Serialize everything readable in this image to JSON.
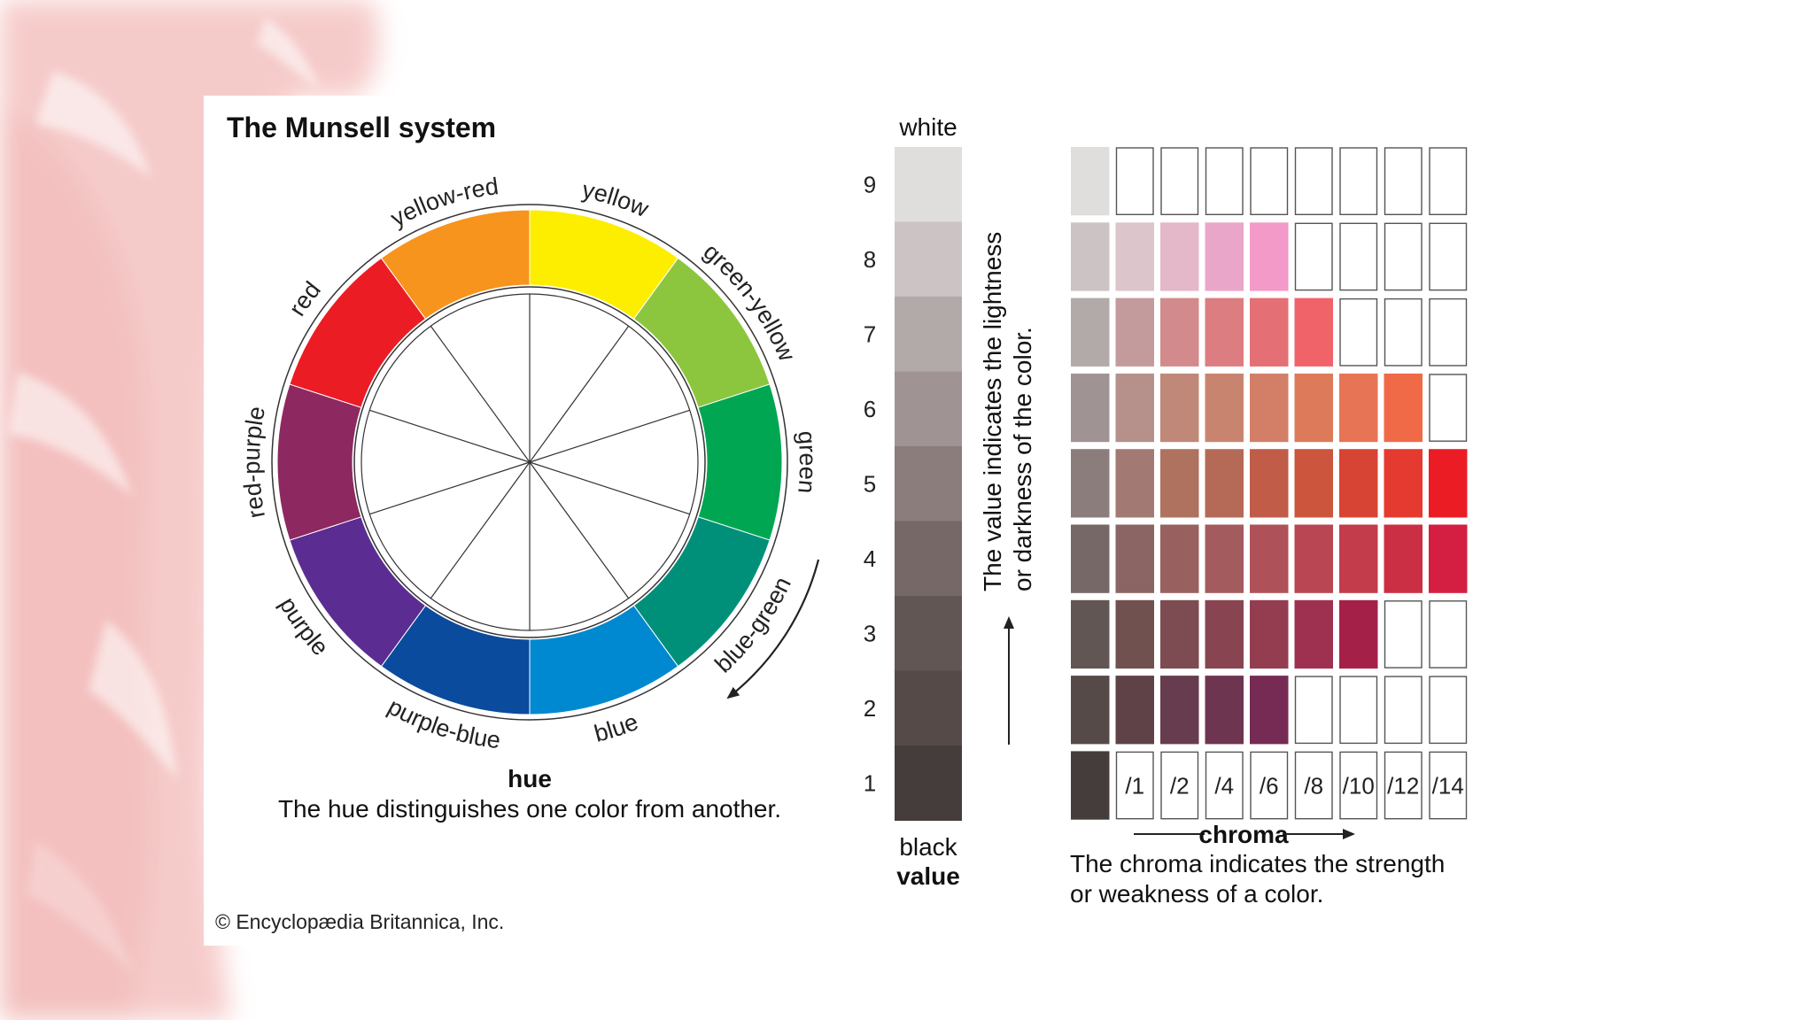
{
  "title": "The Munsell system",
  "credit": "© Encyclopædia Britannica, Inc.",
  "hue": {
    "heading": "hue",
    "caption": "The hue distinguishes one color from another.",
    "segments": [
      {
        "name": "yellow",
        "color": "#fdee00"
      },
      {
        "name": "green-yellow",
        "color": "#8cc63f"
      },
      {
        "name": "green",
        "color": "#00a651"
      },
      {
        "name": "blue-green",
        "color": "#00907a"
      },
      {
        "name": "blue",
        "color": "#0089d0"
      },
      {
        "name": "purple-blue",
        "color": "#0a4b9e"
      },
      {
        "name": "purple",
        "color": "#5b2c91"
      },
      {
        "name": "red-purple",
        "color": "#8e2861"
      },
      {
        "name": "red",
        "color": "#ec1c24"
      },
      {
        "name": "yellow-red",
        "color": "#f7941d"
      }
    ]
  },
  "value": {
    "top_label": "white",
    "bottom_label": "black",
    "heading": "value",
    "caption_line1": "The value indicates the lightness",
    "caption_line2": "or darkness of the color.",
    "levels": [
      9,
      8,
      7,
      6,
      5,
      4,
      3,
      2,
      1
    ],
    "swatches": [
      "#e0dedd",
      "#cbc3c4",
      "#b2aaa9",
      "#9f9493",
      "#8a7d7b",
      "#756866",
      "#625654",
      "#564a48",
      "#453d3c"
    ]
  },
  "chroma": {
    "heading": "chroma",
    "caption_line1": "The chroma indicates the strength",
    "caption_line2": "or weakness of a color.",
    "ticks": [
      "/1",
      "/2",
      "/4",
      "/6",
      "/8",
      "/10",
      "/12",
      "/14"
    ],
    "grid": [
      [
        "#e0dedd",
        null,
        null,
        null,
        null,
        null,
        null,
        null,
        null
      ],
      [
        "#cbc3c4",
        "#dcc5cb",
        "#e4b7c9",
        "#eaa6c9",
        "#f39ac8",
        null,
        null,
        null,
        null
      ],
      [
        "#b2aaa9",
        "#c49b9d",
        "#d38a8d",
        "#dc7d82",
        "#e46f75",
        "#f06368",
        null,
        null,
        null
      ],
      [
        "#9f9493",
        "#b6908b",
        "#bf8878",
        "#c98470",
        "#d37f68",
        "#dd7a5a",
        "#e77454",
        "#f06a48",
        null
      ],
      [
        "#8a7d7b",
        "#a27a73",
        "#ae725f",
        "#b56a57",
        "#c05c48",
        "#cc553d",
        "#d84433",
        "#e43a30",
        "#ec1c24"
      ],
      [
        "#756866",
        "#8a6563",
        "#98605f",
        "#a45b5d",
        "#af5158",
        "#b84653",
        "#c23c4b",
        "#cb2f44",
        "#d41f43"
      ],
      [
        "#625654",
        "#70514f",
        "#7c4c52",
        "#884551",
        "#943d50",
        "#9e3050",
        "#a52049",
        null,
        null
      ],
      [
        "#564a48",
        "#5e4247",
        "#663c4e",
        "#6e3550",
        "#762b55",
        null,
        null,
        null,
        null
      ],
      [
        "#453d3c",
        null,
        null,
        null,
        null,
        null,
        null,
        null,
        null
      ]
    ]
  }
}
